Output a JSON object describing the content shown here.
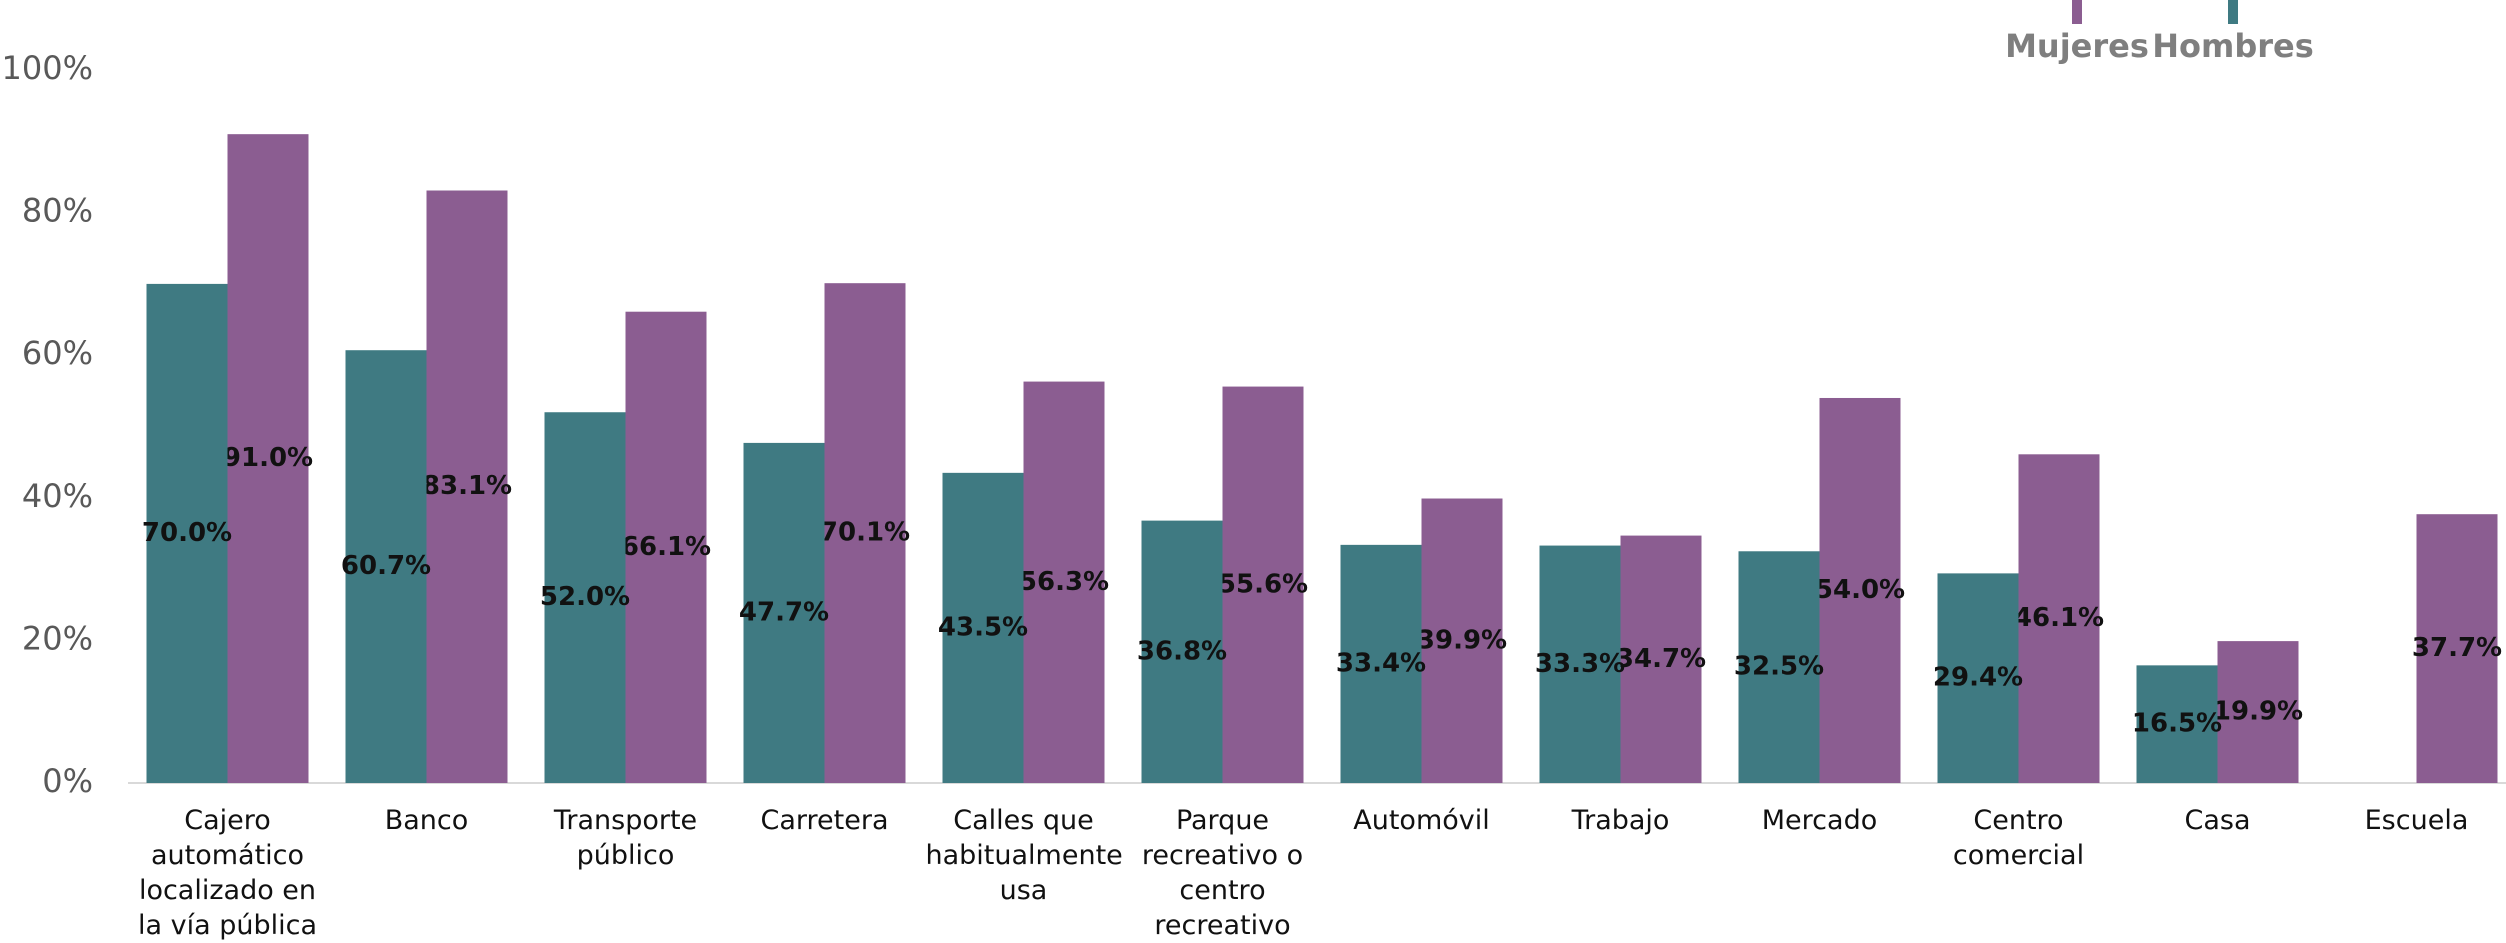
{
  "chart_data": {
    "type": "bar",
    "categories": [
      "Cajero automático localizado en la vía pública",
      "Banco",
      "Transporte público",
      "Carretera",
      "Calles que habitualmente usa",
      "Parque recreativo o centro recreativo",
      "Automóvil",
      "Trabajo",
      "Mercado",
      "Centro comercial",
      "Casa",
      "Escuela"
    ],
    "series": [
      {
        "name": "Mujeres",
        "color": "#8b5d91",
        "values": [
          91.0,
          83.1,
          66.1,
          70.1,
          56.3,
          55.6,
          39.9,
          34.7,
          54.0,
          46.1,
          19.9,
          37.7
        ],
        "value_labels": [
          "91.0%",
          "83.1%",
          "66.1%",
          "70.1%",
          "56.3%",
          "55.6%",
          "39.9%",
          "34.7%",
          "54.0%",
          "46.1%",
          "19.9%",
          "37.7%"
        ]
      },
      {
        "name": "Hombres",
        "color": "#3f7a82",
        "values": [
          70.0,
          60.7,
          52.0,
          47.7,
          43.5,
          36.8,
          33.4,
          33.3,
          32.5,
          29.4,
          16.5,
          null
        ],
        "value_labels": [
          "70.0%",
          "60.7%",
          "52.0%",
          "47.7%",
          "43.5%",
          "36.8%",
          "33.4%",
          "33.3%",
          "32.5%",
          "29.4%",
          "16.5%",
          null
        ]
      }
    ],
    "ylim": [
      0,
      100
    ],
    "yticks": [
      {
        "value": 0,
        "label": "0%"
      },
      {
        "value": 20,
        "label": "20%"
      },
      {
        "value": 40,
        "label": "40%"
      },
      {
        "value": 60,
        "label": "60%"
      },
      {
        "value": 80,
        "label": "80%"
      },
      {
        "value": 100,
        "label": "100%"
      }
    ],
    "grid": false
  }
}
